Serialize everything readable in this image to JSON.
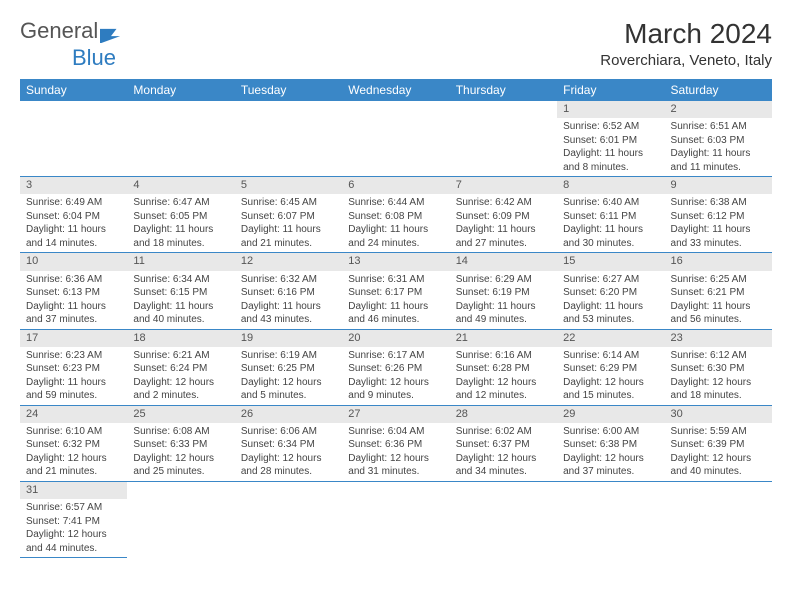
{
  "logo": {
    "text1": "General",
    "text2": "Blue"
  },
  "title": "March 2024",
  "location": "Roverchiara, Veneto, Italy",
  "weekdays": [
    "Sunday",
    "Monday",
    "Tuesday",
    "Wednesday",
    "Thursday",
    "Friday",
    "Saturday"
  ],
  "colors": {
    "header_bg": "#3a87c7",
    "header_text": "#ffffff",
    "daynum_bg": "#e8e8e8",
    "border": "#3a87c7"
  },
  "weeks": [
    [
      {
        "empty": true
      },
      {
        "empty": true
      },
      {
        "empty": true
      },
      {
        "empty": true
      },
      {
        "empty": true
      },
      {
        "day": "1",
        "sunrise": "Sunrise: 6:52 AM",
        "sunset": "Sunset: 6:01 PM",
        "daylight": "Daylight: 11 hours and 8 minutes."
      },
      {
        "day": "2",
        "sunrise": "Sunrise: 6:51 AM",
        "sunset": "Sunset: 6:03 PM",
        "daylight": "Daylight: 11 hours and 11 minutes."
      }
    ],
    [
      {
        "day": "3",
        "sunrise": "Sunrise: 6:49 AM",
        "sunset": "Sunset: 6:04 PM",
        "daylight": "Daylight: 11 hours and 14 minutes."
      },
      {
        "day": "4",
        "sunrise": "Sunrise: 6:47 AM",
        "sunset": "Sunset: 6:05 PM",
        "daylight": "Daylight: 11 hours and 18 minutes."
      },
      {
        "day": "5",
        "sunrise": "Sunrise: 6:45 AM",
        "sunset": "Sunset: 6:07 PM",
        "daylight": "Daylight: 11 hours and 21 minutes."
      },
      {
        "day": "6",
        "sunrise": "Sunrise: 6:44 AM",
        "sunset": "Sunset: 6:08 PM",
        "daylight": "Daylight: 11 hours and 24 minutes."
      },
      {
        "day": "7",
        "sunrise": "Sunrise: 6:42 AM",
        "sunset": "Sunset: 6:09 PM",
        "daylight": "Daylight: 11 hours and 27 minutes."
      },
      {
        "day": "8",
        "sunrise": "Sunrise: 6:40 AM",
        "sunset": "Sunset: 6:11 PM",
        "daylight": "Daylight: 11 hours and 30 minutes."
      },
      {
        "day": "9",
        "sunrise": "Sunrise: 6:38 AM",
        "sunset": "Sunset: 6:12 PM",
        "daylight": "Daylight: 11 hours and 33 minutes."
      }
    ],
    [
      {
        "day": "10",
        "sunrise": "Sunrise: 6:36 AM",
        "sunset": "Sunset: 6:13 PM",
        "daylight": "Daylight: 11 hours and 37 minutes."
      },
      {
        "day": "11",
        "sunrise": "Sunrise: 6:34 AM",
        "sunset": "Sunset: 6:15 PM",
        "daylight": "Daylight: 11 hours and 40 minutes."
      },
      {
        "day": "12",
        "sunrise": "Sunrise: 6:32 AM",
        "sunset": "Sunset: 6:16 PM",
        "daylight": "Daylight: 11 hours and 43 minutes."
      },
      {
        "day": "13",
        "sunrise": "Sunrise: 6:31 AM",
        "sunset": "Sunset: 6:17 PM",
        "daylight": "Daylight: 11 hours and 46 minutes."
      },
      {
        "day": "14",
        "sunrise": "Sunrise: 6:29 AM",
        "sunset": "Sunset: 6:19 PM",
        "daylight": "Daylight: 11 hours and 49 minutes."
      },
      {
        "day": "15",
        "sunrise": "Sunrise: 6:27 AM",
        "sunset": "Sunset: 6:20 PM",
        "daylight": "Daylight: 11 hours and 53 minutes."
      },
      {
        "day": "16",
        "sunrise": "Sunrise: 6:25 AM",
        "sunset": "Sunset: 6:21 PM",
        "daylight": "Daylight: 11 hours and 56 minutes."
      }
    ],
    [
      {
        "day": "17",
        "sunrise": "Sunrise: 6:23 AM",
        "sunset": "Sunset: 6:23 PM",
        "daylight": "Daylight: 11 hours and 59 minutes."
      },
      {
        "day": "18",
        "sunrise": "Sunrise: 6:21 AM",
        "sunset": "Sunset: 6:24 PM",
        "daylight": "Daylight: 12 hours and 2 minutes."
      },
      {
        "day": "19",
        "sunrise": "Sunrise: 6:19 AM",
        "sunset": "Sunset: 6:25 PM",
        "daylight": "Daylight: 12 hours and 5 minutes."
      },
      {
        "day": "20",
        "sunrise": "Sunrise: 6:17 AM",
        "sunset": "Sunset: 6:26 PM",
        "daylight": "Daylight: 12 hours and 9 minutes."
      },
      {
        "day": "21",
        "sunrise": "Sunrise: 6:16 AM",
        "sunset": "Sunset: 6:28 PM",
        "daylight": "Daylight: 12 hours and 12 minutes."
      },
      {
        "day": "22",
        "sunrise": "Sunrise: 6:14 AM",
        "sunset": "Sunset: 6:29 PM",
        "daylight": "Daylight: 12 hours and 15 minutes."
      },
      {
        "day": "23",
        "sunrise": "Sunrise: 6:12 AM",
        "sunset": "Sunset: 6:30 PM",
        "daylight": "Daylight: 12 hours and 18 minutes."
      }
    ],
    [
      {
        "day": "24",
        "sunrise": "Sunrise: 6:10 AM",
        "sunset": "Sunset: 6:32 PM",
        "daylight": "Daylight: 12 hours and 21 minutes."
      },
      {
        "day": "25",
        "sunrise": "Sunrise: 6:08 AM",
        "sunset": "Sunset: 6:33 PM",
        "daylight": "Daylight: 12 hours and 25 minutes."
      },
      {
        "day": "26",
        "sunrise": "Sunrise: 6:06 AM",
        "sunset": "Sunset: 6:34 PM",
        "daylight": "Daylight: 12 hours and 28 minutes."
      },
      {
        "day": "27",
        "sunrise": "Sunrise: 6:04 AM",
        "sunset": "Sunset: 6:36 PM",
        "daylight": "Daylight: 12 hours and 31 minutes."
      },
      {
        "day": "28",
        "sunrise": "Sunrise: 6:02 AM",
        "sunset": "Sunset: 6:37 PM",
        "daylight": "Daylight: 12 hours and 34 minutes."
      },
      {
        "day": "29",
        "sunrise": "Sunrise: 6:00 AM",
        "sunset": "Sunset: 6:38 PM",
        "daylight": "Daylight: 12 hours and 37 minutes."
      },
      {
        "day": "30",
        "sunrise": "Sunrise: 5:59 AM",
        "sunset": "Sunset: 6:39 PM",
        "daylight": "Daylight: 12 hours and 40 minutes."
      }
    ],
    [
      {
        "day": "31",
        "sunrise": "Sunrise: 6:57 AM",
        "sunset": "Sunset: 7:41 PM",
        "daylight": "Daylight: 12 hours and 44 minutes."
      },
      {
        "empty": true
      },
      {
        "empty": true
      },
      {
        "empty": true
      },
      {
        "empty": true
      },
      {
        "empty": true
      },
      {
        "empty": true
      }
    ]
  ]
}
